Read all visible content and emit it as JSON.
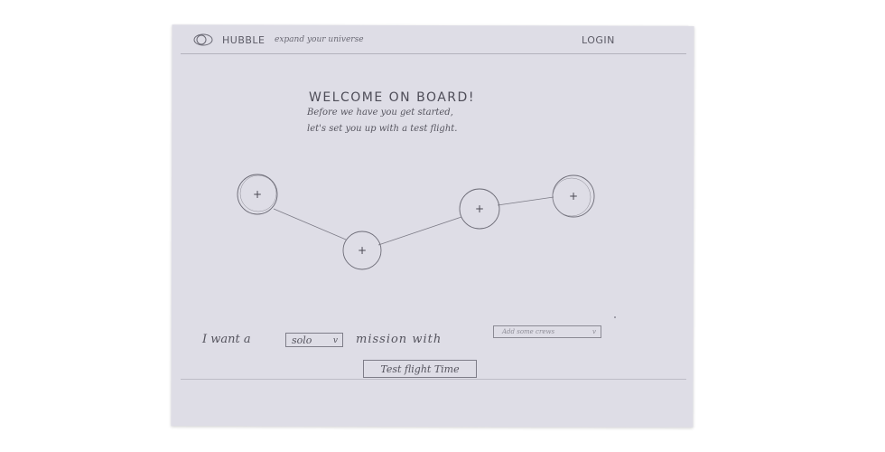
{
  "header": {
    "brand": "HUBBLE",
    "tagline": "expand your universe",
    "login_label": "LOGIN"
  },
  "intro": {
    "title": "WELCOME ON BOARD!",
    "line1": "Before we have you get started,",
    "line2": "let's set you up with a test flight."
  },
  "path_nodes": [
    {
      "label": "+"
    },
    {
      "label": "+"
    },
    {
      "label": "+"
    },
    {
      "label": "+"
    }
  ],
  "mission_form": {
    "lead_text": "I want a",
    "mission_type": {
      "selected": "solo",
      "chevron": "v"
    },
    "middle_text": "mission with",
    "crew_select": {
      "placeholder": "Add some crews",
      "chevron": "v"
    },
    "submit_label": "Test flight Time"
  },
  "colors": {
    "paper": "#dedde6",
    "pencil": "#55545e",
    "rule": "#b3b2bd"
  },
  "icons": [
    "planet-logo-icon",
    "plus-icon",
    "chevron-down-icon"
  ]
}
